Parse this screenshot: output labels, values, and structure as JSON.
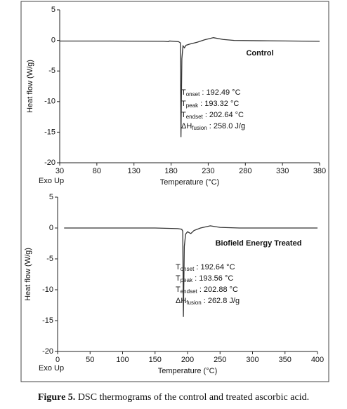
{
  "chart_data": [
    {
      "type": "line",
      "title": "Control",
      "exo_label": "Exo Up",
      "x_label": "Temperature (°C)",
      "y_label": "Heat flow (W/g)",
      "x": [
        30,
        100,
        170,
        176,
        178,
        190,
        192.5,
        193.3,
        194.5,
        196,
        198,
        200,
        205,
        215,
        225,
        237,
        250,
        265,
        300,
        380
      ],
      "values": [
        -0.1,
        -0.1,
        -0.15,
        -0.2,
        -0.1,
        -0.2,
        -0.4,
        -15.8,
        -3,
        -0.9,
        -1.2,
        -0.8,
        -0.6,
        -0.3,
        0.1,
        0.45,
        0.15,
        0,
        -0.05,
        -0.15
      ],
      "color": "#333333",
      "xlim": [
        30,
        380
      ],
      "ylim": [
        -20,
        5
      ],
      "xticks": [
        30,
        80,
        130,
        180,
        230,
        280,
        330,
        380
      ],
      "yticks": [
        5,
        0,
        -5,
        -10,
        -15,
        -20
      ],
      "annotations": [
        {
          "symbol": "T",
          "subscript": "onset",
          "text": " : 192.49 °C"
        },
        {
          "symbol": "T",
          "subscript": "peak",
          "text": " : 193.32 °C"
        },
        {
          "symbol": "T",
          "subscript": "endset",
          "text": " : 202.64 °C"
        },
        {
          "symbol": "ΔH",
          "subscript": "fusion",
          "text": " : 258.0 J/g"
        }
      ]
    },
    {
      "type": "line",
      "title": "Biofield Energy Treated",
      "exo_label": "Exo Up",
      "x_label": "Temperature (°C)",
      "y_label": "Heat flow (W/g)",
      "x": [
        10,
        100,
        150,
        185,
        191,
        192.6,
        193.6,
        195,
        197,
        200,
        205,
        210,
        220,
        235,
        250,
        280,
        400
      ],
      "values": [
        0,
        0,
        0,
        -0.1,
        -0.2,
        -0.5,
        -14.4,
        -3,
        -1,
        -0.6,
        -0.9,
        -0.4,
        0,
        0.35,
        0.1,
        0,
        0
      ],
      "color": "#333333",
      "xlim": [
        0,
        400
      ],
      "ylim": [
        -20,
        5
      ],
      "xticks": [
        0,
        50,
        100,
        150,
        200,
        250,
        300,
        350,
        400
      ],
      "yticks": [
        5,
        0,
        -5,
        -10,
        -15,
        -20
      ],
      "annotations": [
        {
          "symbol": "T",
          "subscript": "onset",
          "text": " : 192.64 °C"
        },
        {
          "symbol": "T",
          "subscript": "peak",
          "text": " : 193.56 °C"
        },
        {
          "symbol": "T",
          "subscript": "endset",
          "text": " : 202.88 °C"
        },
        {
          "symbol": "ΔH",
          "subscript": "fusion",
          "text": " : 262.8 J/g"
        }
      ]
    }
  ],
  "caption": {
    "label": "Figure 5.",
    "text": "DSC thermograms of the control and treated ascorbic acid."
  }
}
